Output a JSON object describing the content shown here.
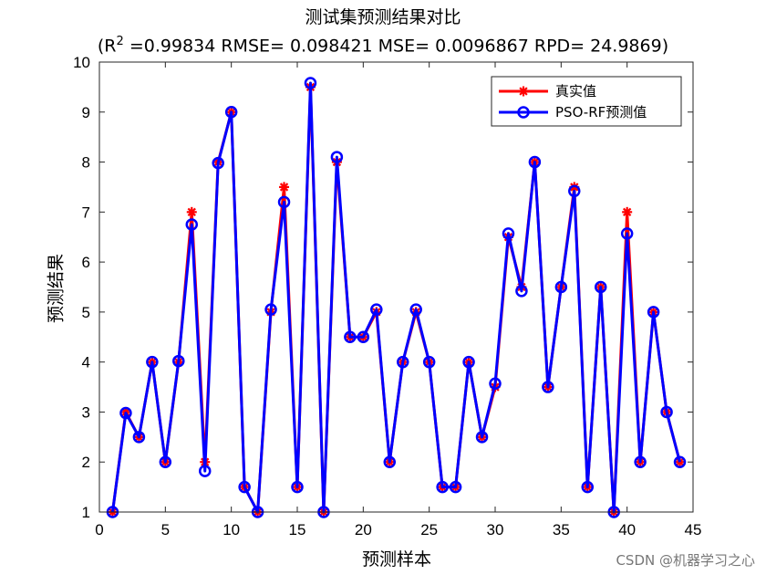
{
  "chart_data": {
    "type": "line",
    "title": "测试集预测结果对比",
    "subtitle_parts": {
      "open": "(R",
      "sup": "2",
      "rest": " =0.99834 RMSE= 0.098421 MSE= 0.0096867 RPD= 24.9869)"
    },
    "xlabel": "预测样本",
    "ylabel": "预测结果",
    "xlim": [
      0,
      45
    ],
    "ylim": [
      1,
      10
    ],
    "xticks": [
      0,
      5,
      10,
      15,
      20,
      25,
      30,
      35,
      40,
      45
    ],
    "yticks": [
      1,
      2,
      3,
      4,
      5,
      6,
      7,
      8,
      9,
      10
    ],
    "legend_position": "top-right",
    "x": [
      1,
      2,
      3,
      4,
      5,
      6,
      7,
      8,
      9,
      10,
      11,
      12,
      13,
      14,
      15,
      16,
      17,
      18,
      19,
      20,
      21,
      22,
      23,
      24,
      25,
      26,
      27,
      28,
      29,
      30,
      31,
      32,
      33,
      34,
      35,
      36,
      37,
      38,
      39,
      40,
      41,
      42,
      43,
      44
    ],
    "series": [
      {
        "name": "真实值",
        "color": "#ff0000",
        "marker": "asterisk",
        "values": [
          1,
          3,
          2.5,
          4,
          2,
          4,
          7,
          2,
          8,
          9,
          1.5,
          1,
          5,
          7.5,
          1.5,
          9.5,
          1,
          8,
          4.5,
          4.5,
          5,
          2,
          4,
          5,
          4,
          1.5,
          1.5,
          4,
          2.5,
          3.5,
          6.5,
          5.5,
          8,
          3.5,
          5.5,
          7.5,
          1.5,
          5.5,
          1,
          7,
          2,
          5,
          3,
          2
        ]
      },
      {
        "name": "PSO-RF预测值",
        "color": "#0000ff",
        "marker": "circle",
        "values": [
          1,
          2.98,
          2.5,
          4,
          2,
          4.02,
          6.75,
          1.82,
          7.98,
          9,
          1.5,
          1,
          5.05,
          7.2,
          1.5,
          9.58,
          1,
          8.1,
          4.5,
          4.5,
          5.05,
          2,
          4,
          5.05,
          4,
          1.5,
          1.5,
          4,
          2.5,
          3.57,
          6.57,
          5.42,
          8,
          3.5,
          5.5,
          7.42,
          1.5,
          5.5,
          1,
          6.57,
          2,
          5,
          3,
          2
        ]
      }
    ]
  },
  "watermark": "CSDN @机器学习之心"
}
